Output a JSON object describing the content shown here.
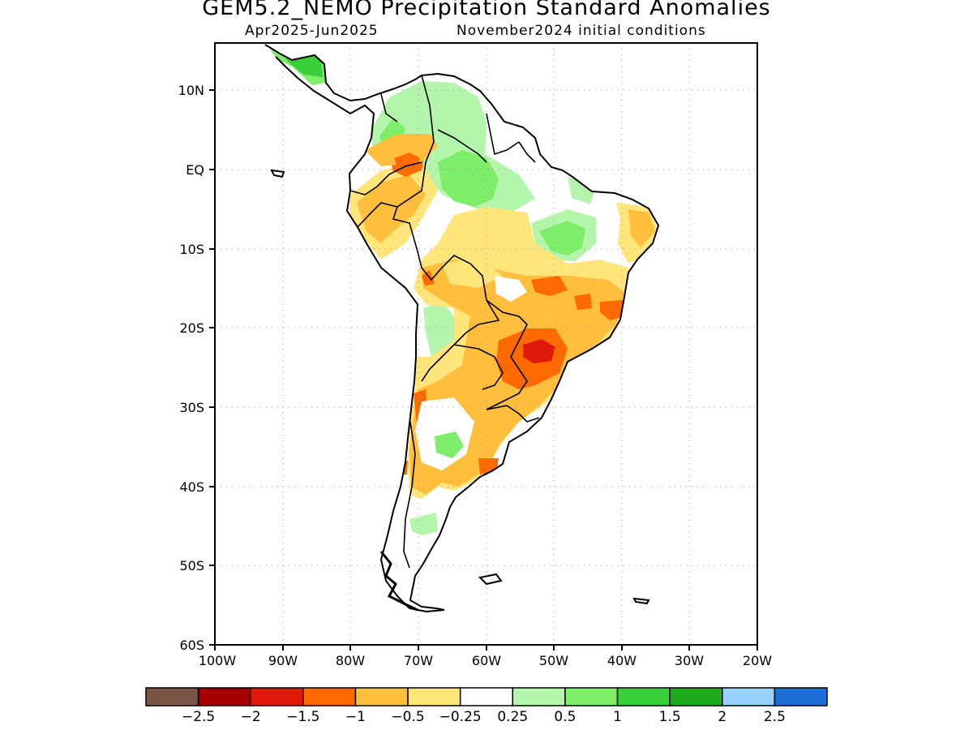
{
  "header": {
    "title": "GEM5.2_NEMO Precipitation Standard Anomalies",
    "period": "Apr2025-Jun2025",
    "init": "November2024 initial conditions"
  },
  "axes": {
    "lat_labels": [
      "10N",
      "EQ",
      "10S",
      "20S",
      "30S",
      "40S",
      "50S",
      "60S"
    ],
    "lon_labels": [
      "100W",
      "90W",
      "80W",
      "70W",
      "60W",
      "50W",
      "40W",
      "30W",
      "20W"
    ],
    "lat_range": [
      -60,
      16
    ],
    "lon_range": [
      -100,
      -20
    ]
  },
  "colorbar": {
    "colors": [
      "#7a5548",
      "#a40000",
      "#e01a0a",
      "#ff6a00",
      "#ffbe3c",
      "#ffe57a",
      "#ffffff",
      "#b4f5ac",
      "#7ded6a",
      "#38cf3a",
      "#1daa1d",
      "#96d2fa",
      "#1e6ed7"
    ],
    "labels": [
      "−2.5",
      "−2",
      "−1.5",
      "−1",
      "−0.5",
      "−0.25",
      "0.25",
      "0.5",
      "1",
      "1.5",
      "2",
      "2.5"
    ]
  }
}
